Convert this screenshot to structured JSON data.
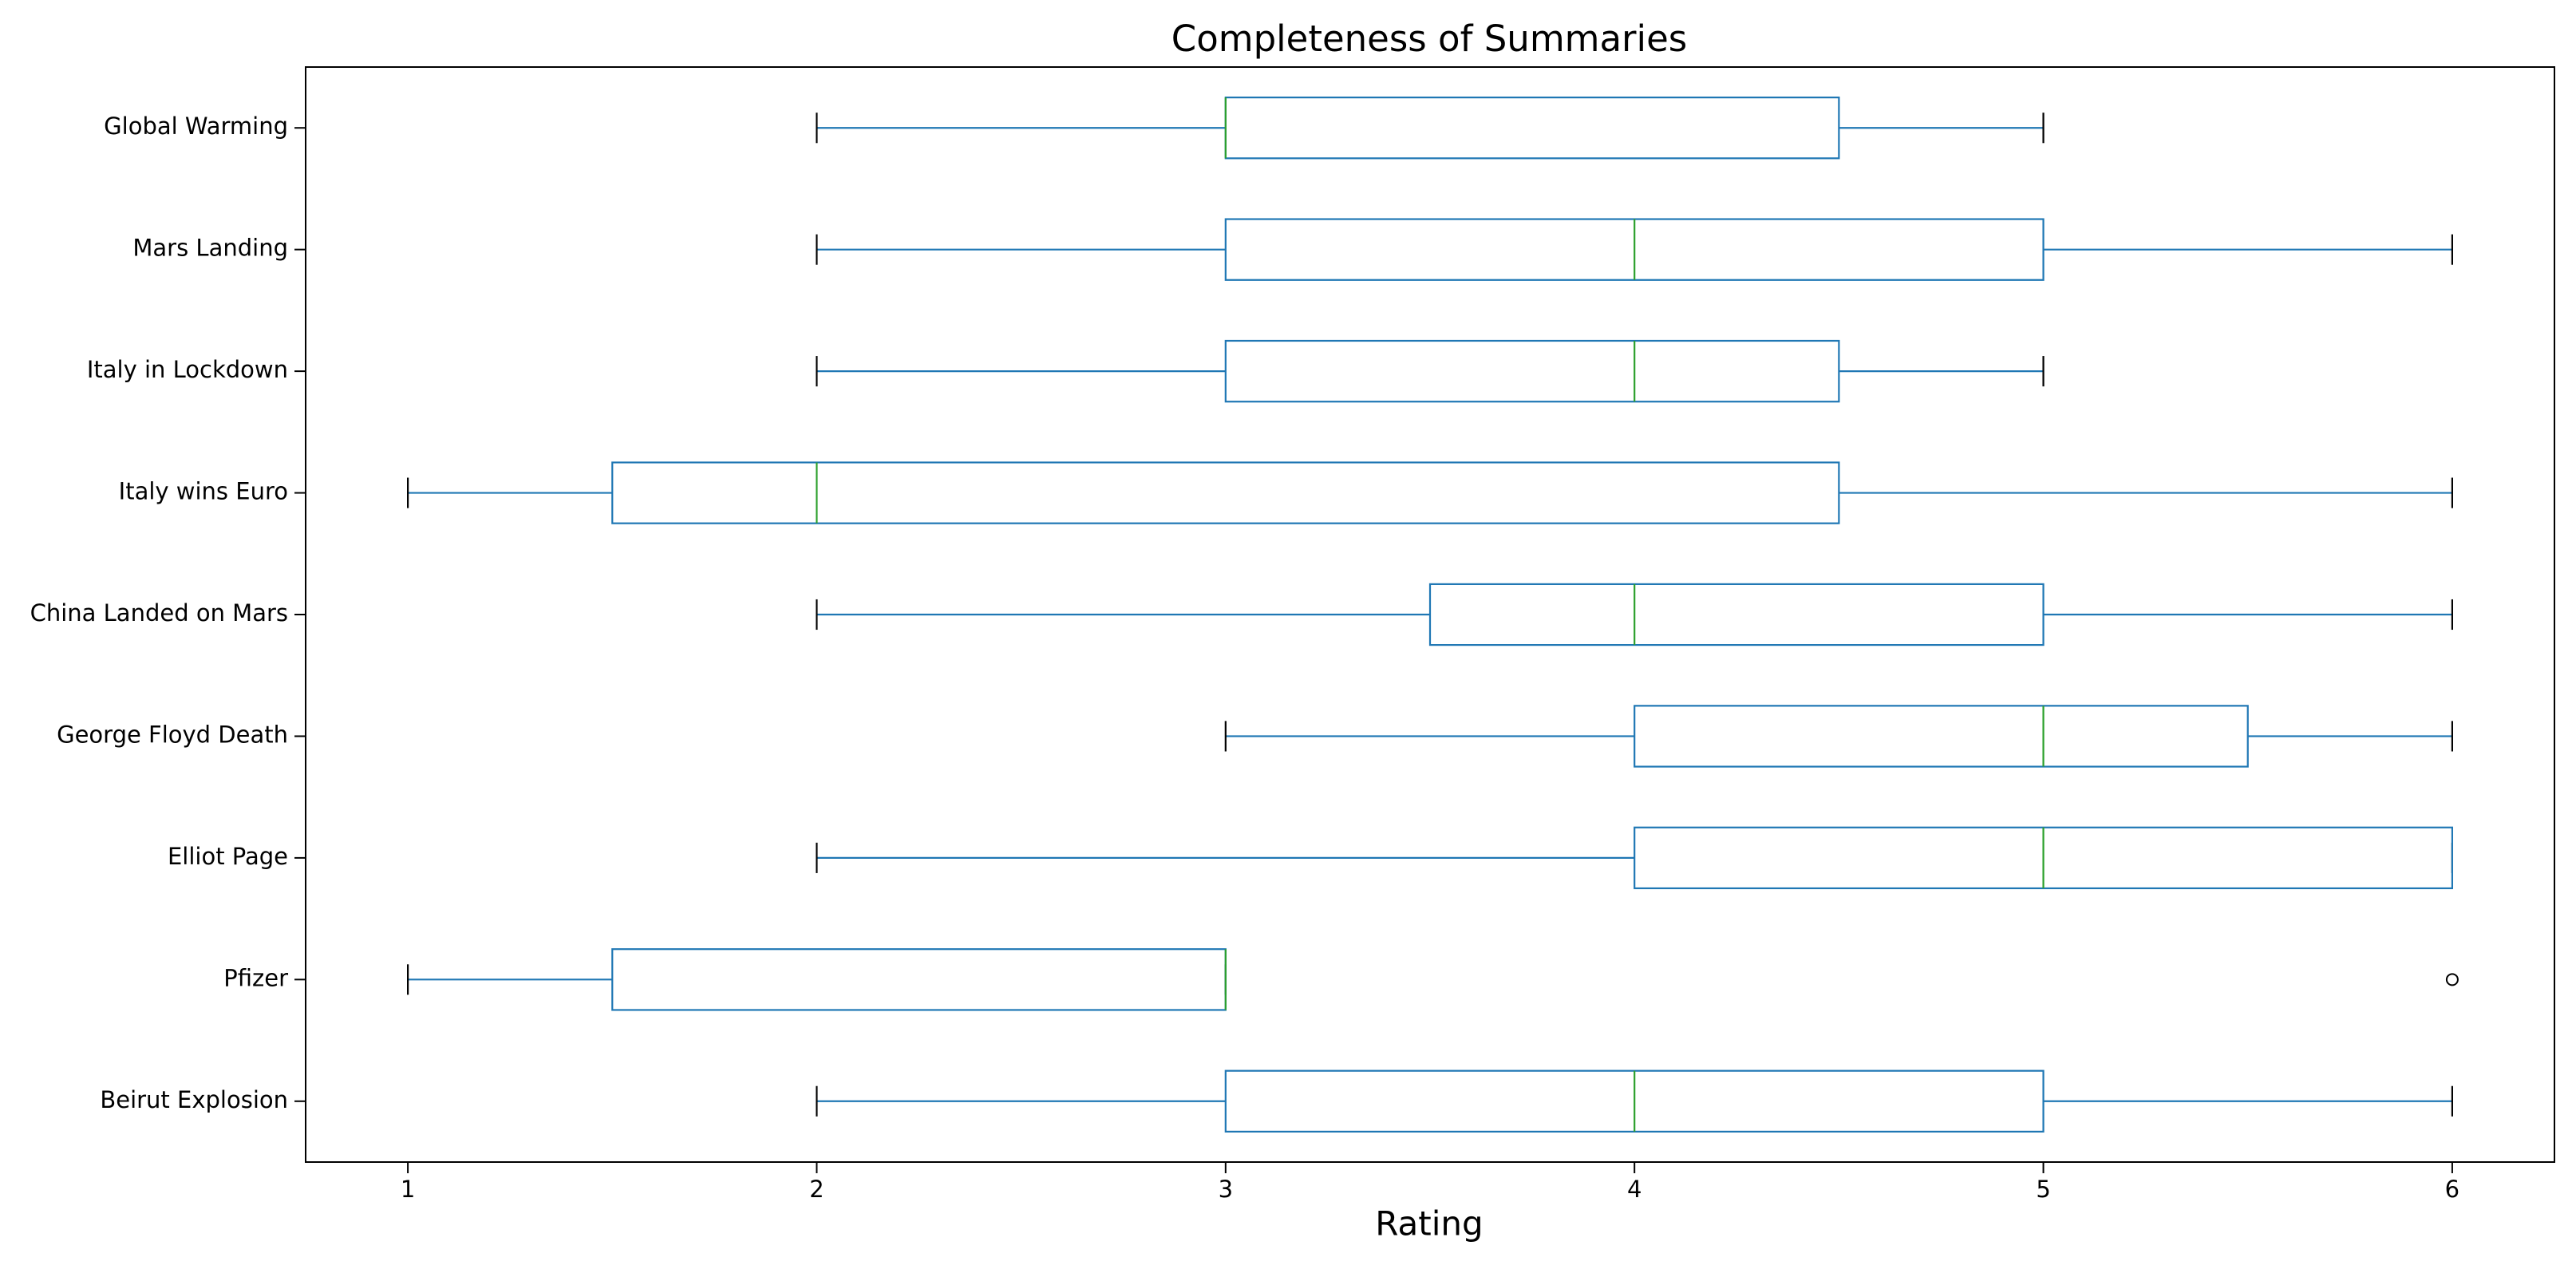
{
  "chart_data": {
    "type": "boxplot",
    "title": "Completeness of Summaries",
    "x_label": "Rating",
    "orientation": "horizontal",
    "categories": [
      "Beirut Explosion",
      "Pfizer",
      "Elliot Page",
      "George Floyd Death",
      "China Landed on Mars",
      "Italy wins Euro",
      "Italy in Lockdown",
      "Mars Landing",
      "Global Warming"
    ],
    "whislo": [
      2,
      1,
      2,
      3,
      2,
      1,
      2,
      2,
      2
    ],
    "q1": [
      3,
      1.5,
      4,
      4,
      3.5,
      1.5,
      3,
      3,
      3
    ],
    "median": [
      4,
      3,
      5,
      5,
      4,
      2,
      4,
      4,
      3
    ],
    "q3": [
      5,
      3,
      6,
      5.5,
      5,
      4.5,
      4.5,
      5,
      4.5
    ],
    "whishi": [
      6,
      3,
      6,
      6,
      6,
      6,
      5,
      6,
      5
    ],
    "fliers": [
      [],
      [
        6
      ],
      [],
      [],
      [],
      [],
      [],
      [],
      []
    ],
    "box_color": "#1f77b4",
    "median_color": "#2ca02c",
    "cap_color": "#000000",
    "xlim": [
      0.75,
      6.25
    ],
    "xticks": [
      1,
      2,
      3,
      4,
      5,
      6
    ],
    "grid": false
  }
}
